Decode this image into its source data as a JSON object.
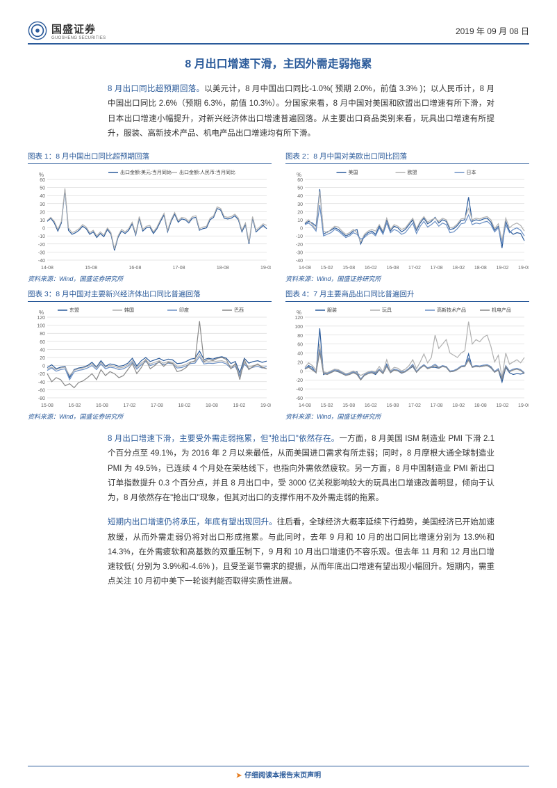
{
  "header": {
    "company_cn": "国盛证券",
    "company_en": "GUOSHENG SECURITIES",
    "date": "2019 年 09 月 08 日"
  },
  "title": "8 月出口增速下滑，主因外需走弱拖累",
  "para1_lead": "8 月出口同比超预期回落。",
  "para1_rest": "以美元计，8 月中国出口同比-1.0%( 预期 2.0%，前值 3.3% )；以人民币计，8 月中国出口同比 2.6%（预期 6.3%，前值 10.3%）。分国家来看，8 月中国对美国和欧盟出口增速有所下滑，对日本出口增速小幅提升，对新兴经济体出口增速普遍回落。从主要出口商品类别来看，玩具出口增速有所提升，服装、高新技术产品、机电产品出口增速均有所下滑。",
  "para2_lead": "8 月出口增速下滑，主要受外需走弱拖累，但\"抢出口\"依然存在。",
  "para2_rest": "一方面，8 月美国 ISM 制造业 PMI 下滑 2.1 个百分点至 49.1%，为 2016 年 2 月以来最低，从而美国进口需求有所走弱；同时，8 月摩根大通全球制造业 PMI 为 49.5%，已连续 4 个月处在荣枯线下，也指向外需依然疲软。另一方面，8 月中国制造业 PMI 新出口订单指数提升 0.3 个百分点，并且 8 月出口中，受 3000 亿关税影响较大的玩具出口增速改善明显，倾向于认为，8 月依然存在\"抢出口\"现象，但其对出口的支撑作用不及外需走弱的拖累。",
  "para3_lead": "短期内出口增速仍将承压，年底有望出现回升。",
  "para3_rest": "往后看，全球经济大概率延续下行趋势，美国经济已开始加速放缓，从而外需走弱仍将对出口形成拖累。与此同时，去年 9 月和 10 月的出口同比增速分别为 13.9%和 14.3%，在外需疲软和高基数的双重压制下，9 月和 10 月出口增速仍不容乐观。但去年 11 月和 12 月出口增速较低( 分别为 3.9%和-4.6% )，且受圣诞节需求的提振，从而年底出口增速有望出现小幅回升。短期内，需重点关注 10 月初中美下一轮谈判能否取得实质性进展。",
  "chart1": {
    "title": "图表 1：8 月中国出口同比超预期回落",
    "legend": [
      "出口金额:美元:当月同比",
      "出口金额:人民币:当月同比"
    ],
    "colors": [
      "#2a5a9a",
      "#b0b0b0"
    ],
    "ylabel": "%",
    "ylim": [
      -40,
      60
    ],
    "ytick_step": 10,
    "x_labels": [
      "14-08",
      "15-08",
      "16-08",
      "17-08",
      "18-08",
      "19-08"
    ],
    "background_color": "#ffffff",
    "grid_color": "#cccccc",
    "series": [
      [
        8,
        12,
        6,
        -4,
        6,
        47,
        -3,
        -8,
        -6,
        -3,
        2,
        -1,
        -8,
        -5,
        -12,
        -7,
        -11,
        -2,
        -8,
        -28,
        -12,
        -4,
        -7,
        -3,
        5,
        -9,
        12,
        -4,
        0,
        1,
        -7,
        -1,
        8,
        16,
        -5,
        8,
        17,
        7,
        11,
        10,
        6,
        12,
        13,
        -3,
        -1,
        0,
        10,
        13,
        24,
        22,
        12,
        11,
        12,
        15,
        10,
        -5,
        4,
        -20,
        12,
        -5,
        -1,
        3,
        -1
      ],
      [
        9,
        13,
        8,
        -2,
        8,
        49,
        0,
        -6,
        -4,
        -1,
        4,
        1,
        -6,
        -3,
        -10,
        -5,
        -9,
        0,
        -6,
        -26,
        -10,
        -2,
        -5,
        -1,
        7,
        -7,
        14,
        -2,
        2,
        3,
        -5,
        1,
        10,
        18,
        -3,
        10,
        19,
        9,
        13,
        12,
        8,
        14,
        15,
        -1,
        1,
        2,
        12,
        15,
        26,
        24,
        14,
        13,
        14,
        17,
        12,
        -3,
        6,
        -18,
        14,
        -3,
        1,
        5,
        3
      ]
    ],
    "source": "资料来源：Wind，国盛证券研究所"
  },
  "chart2": {
    "title": "图表 2：8 月中国对美欧出口同比回落",
    "legend": [
      "美国",
      "欧盟",
      "日本"
    ],
    "colors": [
      "#2a5a9a",
      "#b0b0b0",
      "#6a8fc4"
    ],
    "ylabel": "%",
    "ylim": [
      -40,
      60
    ],
    "ytick_step": 10,
    "x_labels": [
      "14-08",
      "15-02",
      "15-08",
      "16-02",
      "16-08",
      "17-02",
      "17-08",
      "18-02",
      "18-08",
      "19-02",
      "19-08"
    ],
    "background_color": "#ffffff",
    "grid_color": "#cccccc",
    "series": [
      [
        5,
        8,
        6,
        2,
        48,
        -8,
        -5,
        -3,
        0,
        -2,
        -6,
        -10,
        -8,
        -4,
        -2,
        -20,
        -10,
        -6,
        -4,
        -8,
        2,
        -6,
        10,
        -4,
        2,
        0,
        -5,
        -2,
        4,
        10,
        -3,
        6,
        12,
        5,
        8,
        13,
        6,
        10,
        8,
        -2,
        -1,
        3,
        9,
        10,
        38,
        8,
        10,
        9,
        11,
        12,
        7,
        -3,
        2,
        -25,
        8,
        -4,
        -8,
        -6,
        -7,
        -16
      ],
      [
        6,
        10,
        4,
        -2,
        45,
        -4,
        -6,
        -2,
        2,
        1,
        -4,
        -8,
        -6,
        -2,
        -6,
        -18,
        -8,
        -4,
        -2,
        -4,
        4,
        -4,
        12,
        -2,
        4,
        2,
        -2,
        0,
        6,
        12,
        -1,
        8,
        14,
        7,
        10,
        12,
        8,
        12,
        10,
        0,
        1,
        5,
        11,
        12,
        24,
        10,
        12,
        11,
        13,
        14,
        10,
        -1,
        5,
        -16,
        12,
        0,
        4,
        6,
        3,
        -4
      ],
      [
        4,
        6,
        2,
        -4,
        28,
        -10,
        -8,
        -6,
        -2,
        -4,
        -8,
        -12,
        -10,
        -6,
        -8,
        -14,
        -12,
        -8,
        -6,
        -10,
        0,
        -8,
        6,
        -6,
        -2,
        -4,
        -8,
        -6,
        0,
        6,
        -7,
        2,
        8,
        1,
        4,
        8,
        2,
        6,
        4,
        -6,
        -5,
        -1,
        5,
        6,
        16,
        4,
        6,
        5,
        7,
        8,
        4,
        -5,
        0,
        -20,
        4,
        -6,
        -2,
        0,
        -3,
        -10
      ]
    ],
    "source": "资料来源：Wind，国盛证券研究所"
  },
  "chart3": {
    "title": "图表 3：8 月中国对主要新兴经济体出口同比普遍回落",
    "legend": [
      "东盟",
      "韩国",
      "印度",
      "巴西"
    ],
    "colors": [
      "#2a5a9a",
      "#b0b0b0",
      "#6a8fc4",
      "#888888"
    ],
    "ylabel": "%",
    "ylim": [
      -80,
      120
    ],
    "ytick_step": 20,
    "x_labels": [
      "15-08",
      "16-02",
      "16-08",
      "17-02",
      "17-08",
      "18-02",
      "18-08",
      "19-02",
      "19-08"
    ],
    "background_color": "#ffffff",
    "grid_color": "#cccccc",
    "series": [
      [
        -5,
        2,
        -8,
        -4,
        -2,
        -30,
        -10,
        -6,
        -4,
        0,
        8,
        -4,
        12,
        -2,
        4,
        2,
        -2,
        0,
        6,
        18,
        -1,
        12,
        20,
        10,
        14,
        18,
        12,
        16,
        14,
        5,
        6,
        10,
        16,
        18,
        36,
        15,
        18,
        16,
        20,
        22,
        18,
        5,
        10,
        -18,
        18,
        6,
        10,
        12,
        8,
        11
      ],
      [
        -8,
        -4,
        -10,
        -6,
        -4,
        -25,
        -12,
        -8,
        -6,
        -2,
        4,
        -6,
        8,
        -4,
        0,
        -2,
        -6,
        -4,
        2,
        12,
        -5,
        6,
        14,
        4,
        8,
        12,
        6,
        10,
        8,
        -2,
        -1,
        3,
        9,
        10,
        28,
        8,
        10,
        9,
        11,
        12,
        8,
        -3,
        2,
        -22,
        8,
        -4,
        0,
        2,
        -2,
        -8
      ],
      [
        -12,
        -6,
        -14,
        -10,
        -8,
        -35,
        -16,
        -12,
        -10,
        -6,
        0,
        -10,
        4,
        -8,
        -4,
        -6,
        -10,
        -8,
        -2,
        8,
        -9,
        2,
        10,
        0,
        4,
        8,
        2,
        6,
        4,
        -6,
        -5,
        -1,
        5,
        6,
        22,
        4,
        6,
        5,
        7,
        8,
        4,
        -7,
        -2,
        -26,
        4,
        -8,
        -4,
        -2,
        -6,
        -2
      ],
      [
        -20,
        -40,
        -30,
        -35,
        -50,
        -45,
        -55,
        -42,
        -38,
        -30,
        -20,
        -35,
        -10,
        -25,
        -15,
        -20,
        -30,
        -25,
        -10,
        5,
        -20,
        -5,
        15,
        -8,
        0,
        10,
        -2,
        8,
        5,
        -15,
        -12,
        -5,
        8,
        12,
        110,
        10,
        15,
        12,
        18,
        20,
        15,
        -8,
        5,
        -35,
        15,
        -10,
        -2,
        4,
        -5,
        -8
      ]
    ],
    "source": "资料来源：Wind，国盛证券研究所"
  },
  "chart4": {
    "title": "图表 4：7 月主要商品出口同比普遍回升",
    "legend": [
      "服装",
      "玩具",
      "高新技术产品",
      "机电产品"
    ],
    "colors": [
      "#2a5a9a",
      "#b0b0b0",
      "#6a8fc4",
      "#888888"
    ],
    "ylabel": "%",
    "ylim": [
      -60,
      120
    ],
    "ytick_step": 20,
    "x_labels": [
      "14-08",
      "15-02",
      "15-08",
      "16-02",
      "16-08",
      "17-02",
      "17-08",
      "18-02",
      "18-08",
      "19-02",
      "19-08"
    ],
    "background_color": "#ffffff",
    "grid_color": "#cccccc",
    "series": [
      [
        5,
        12,
        8,
        -4,
        95,
        -8,
        -5,
        -3,
        0,
        -2,
        -6,
        -10,
        -8,
        -4,
        -2,
        -20,
        -10,
        -6,
        -4,
        -8,
        2,
        -6,
        15,
        -4,
        2,
        0,
        -5,
        -2,
        4,
        10,
        -3,
        6,
        12,
        5,
        8,
        8,
        6,
        10,
        8,
        -2,
        -1,
        3,
        9,
        10,
        38,
        8,
        10,
        9,
        11,
        12,
        7,
        -3,
        2,
        -25,
        8,
        -4,
        -8,
        -6,
        -7,
        -5
      ],
      [
        8,
        18,
        12,
        2,
        60,
        -2,
        -4,
        0,
        4,
        3,
        -2,
        -6,
        -4,
        0,
        -4,
        -10,
        -6,
        -2,
        0,
        -2,
        10,
        -2,
        25,
        0,
        8,
        6,
        0,
        4,
        12,
        25,
        5,
        20,
        38,
        18,
        30,
        80,
        50,
        60,
        70,
        40,
        35,
        30,
        40,
        45,
        110,
        60,
        70,
        65,
        75,
        80,
        55,
        20,
        35,
        -15,
        40,
        15,
        20,
        25,
        18,
        30
      ],
      [
        6,
        10,
        4,
        -2,
        48,
        -4,
        -6,
        -2,
        2,
        1,
        -4,
        -8,
        -6,
        -2,
        -6,
        -18,
        -8,
        -4,
        -2,
        -4,
        4,
        -4,
        12,
        -2,
        4,
        2,
        -2,
        0,
        6,
        15,
        -1,
        8,
        14,
        7,
        10,
        15,
        8,
        12,
        10,
        0,
        1,
        5,
        11,
        12,
        28,
        10,
        12,
        11,
        13,
        14,
        10,
        -1,
        5,
        -16,
        12,
        0,
        4,
        6,
        3,
        -4
      ],
      [
        4,
        8,
        2,
        -4,
        42,
        -6,
        -8,
        -4,
        0,
        -1,
        -6,
        -10,
        -8,
        -4,
        -8,
        -20,
        -10,
        -6,
        -4,
        -6,
        2,
        -6,
        10,
        -4,
        2,
        0,
        -4,
        -2,
        4,
        12,
        -3,
        6,
        12,
        5,
        8,
        12,
        6,
        10,
        8,
        -2,
        -1,
        3,
        9,
        10,
        24,
        8,
        10,
        9,
        11,
        12,
        8,
        -3,
        2,
        -18,
        10,
        -2,
        2,
        4,
        1,
        -6
      ]
    ],
    "source": "资料来源：Wind，国盛证券研究所"
  },
  "footer": "仔细阅读本报告末页声明"
}
